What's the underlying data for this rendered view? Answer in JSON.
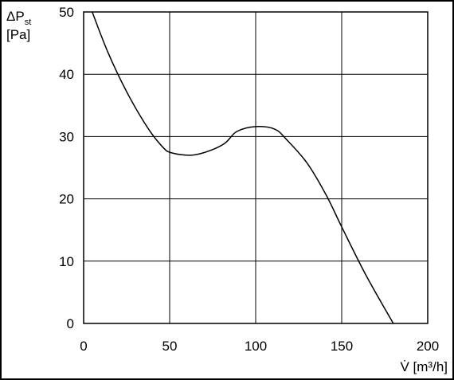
{
  "chart_data": {
    "type": "line",
    "ylabel": {
      "symbol": "ΔP",
      "subscript": "st",
      "unit": "[Pa]"
    },
    "xlabel": "V̇ [m³/h]",
    "x": [
      5,
      14,
      25,
      37,
      46,
      51,
      62,
      72,
      82,
      89,
      100,
      111,
      118,
      130,
      141,
      150,
      164,
      180
    ],
    "series": [
      {
        "color": "#000000",
        "values": [
          50,
          43.6,
          37.2,
          31.5,
          28.3,
          27.4,
          27,
          27.6,
          28.9,
          30.8,
          31.6,
          31.2,
          29.5,
          25.7,
          20.6,
          15.5,
          7.8,
          0
        ]
      }
    ],
    "xlim": [
      0,
      200
    ],
    "xticks": [
      0,
      50,
      100,
      150,
      200
    ],
    "ylim": [
      0,
      50
    ],
    "yticks": [
      0,
      10,
      20,
      30,
      40,
      50
    ],
    "grid": true
  }
}
